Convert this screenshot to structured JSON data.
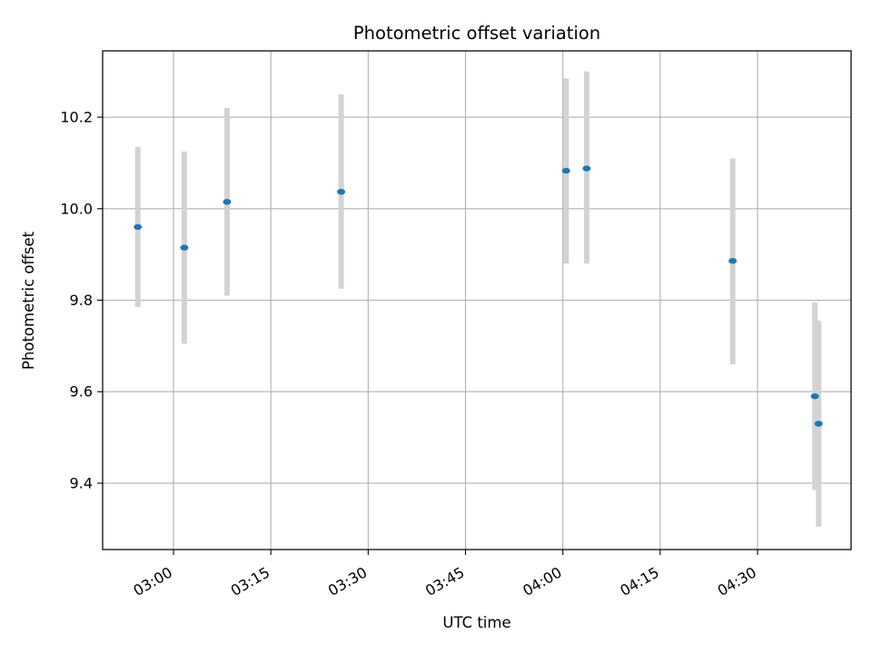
{
  "chart_data": {
    "type": "scatter",
    "title": "Photometric offset variation",
    "xlabel": "UTC time",
    "ylabel": "Photometric offset",
    "x_axis": {
      "kind": "time",
      "range": [
        "02:49:05",
        "04:44:25"
      ],
      "ticks": [
        "03:00",
        "03:15",
        "03:30",
        "03:45",
        "04:00",
        "04:15",
        "04:30"
      ]
    },
    "y_axis": {
      "range": [
        9.255,
        10.345
      ],
      "ticks": [
        "9.4",
        "9.6",
        "9.8",
        "10.0",
        "10.2"
      ]
    },
    "grid": true,
    "points": [
      {
        "time": "02:54:30",
        "y": 9.96,
        "ylow": 9.785,
        "yhigh": 10.135
      },
      {
        "time": "03:01:40",
        "y": 9.915,
        "ylow": 9.705,
        "yhigh": 10.125
      },
      {
        "time": "03:08:15",
        "y": 10.015,
        "ylow": 9.81,
        "yhigh": 10.22
      },
      {
        "time": "03:25:50",
        "y": 10.037,
        "ylow": 9.825,
        "yhigh": 10.25
      },
      {
        "time": "04:00:30",
        "y": 10.083,
        "ylow": 9.88,
        "yhigh": 10.285
      },
      {
        "time": "04:03:40",
        "y": 10.088,
        "ylow": 9.88,
        "yhigh": 10.3
      },
      {
        "time": "04:26:10",
        "y": 9.886,
        "ylow": 9.66,
        "yhigh": 10.11
      },
      {
        "time": "04:38:50",
        "y": 9.59,
        "ylow": 9.385,
        "yhigh": 9.795
      },
      {
        "time": "04:39:25",
        "y": 9.53,
        "ylow": 9.305,
        "yhigh": 9.755
      }
    ],
    "colors": {
      "marker": "#1f77b4",
      "errorbar": "#d3d3d3",
      "grid": "#b0b0b0"
    }
  }
}
